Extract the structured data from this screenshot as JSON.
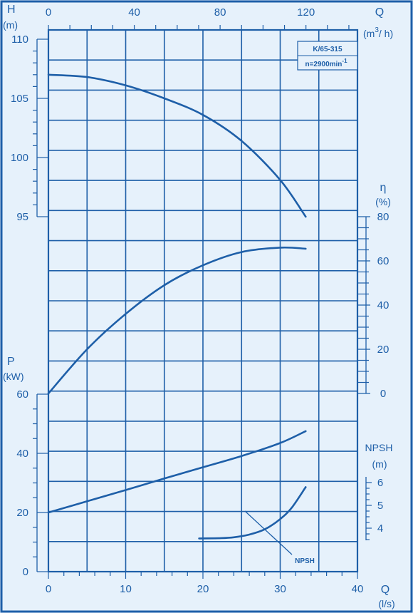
{
  "chart_data": {
    "type": "line",
    "model": "K/65-315",
    "speed": "n=2900min",
    "speed_sup": "-1",
    "colors": {
      "ink": "#1e5fa8",
      "background": "#e6f1fb"
    },
    "grid": true,
    "axes": {
      "x_bottom": {
        "title": "Q",
        "unit": "(l/s)",
        "range": [
          0,
          40
        ],
        "ticks": [
          "0",
          "10",
          "20",
          "30",
          "40"
        ]
      },
      "x_top": {
        "title": "Q",
        "unit": "(m",
        "unit_sup": "3",
        "unit_tail": "/ h)",
        "range": [
          0,
          144
        ],
        "ticks": [
          "0",
          "40",
          "80",
          "120"
        ]
      },
      "head": {
        "title": "H",
        "unit": "(m)",
        "range": [
          95,
          110
        ],
        "ticks": [
          "95",
          "100",
          "105",
          "110"
        ]
      },
      "efficiency": {
        "title": "η",
        "unit": "(%)",
        "range": [
          0,
          80
        ],
        "ticks": [
          "0",
          "20",
          "40",
          "60",
          "80"
        ]
      },
      "power": {
        "title": "P",
        "unit": "(kW)",
        "range": [
          0,
          60
        ],
        "ticks": [
          "0",
          "20",
          "40",
          "60"
        ]
      },
      "npsh": {
        "title": "NPSH",
        "unit": "(m)",
        "range": [
          3.5,
          6
        ],
        "ticks": [
          "4",
          "5",
          "6"
        ]
      }
    },
    "series": [
      {
        "axis": "head",
        "x": [
          0,
          5,
          10,
          15,
          20,
          25,
          30,
          33.3
        ],
        "y": [
          107.0,
          106.8,
          106.1,
          105.0,
          103.6,
          101.4,
          98.1,
          95.0
        ]
      },
      {
        "axis": "efficiency",
        "x": [
          0,
          5,
          10,
          15,
          20,
          25,
          30,
          33.3
        ],
        "y": [
          0,
          20,
          36,
          49,
          58,
          64,
          66,
          65.5
        ]
      },
      {
        "axis": "power",
        "x": [
          0,
          5,
          10,
          15,
          20,
          25,
          30,
          33.3
        ],
        "y": [
          20.0,
          23.8,
          27.6,
          31.5,
          35.3,
          39.1,
          43.5,
          47.5
        ]
      },
      {
        "axis": "npsh",
        "name": "NPSH",
        "x": [
          19.5,
          22,
          24,
          26,
          28,
          30,
          31.5,
          33.3
        ],
        "y": [
          3.55,
          3.56,
          3.6,
          3.72,
          3.95,
          4.4,
          4.9,
          5.8
        ]
      }
    ]
  }
}
